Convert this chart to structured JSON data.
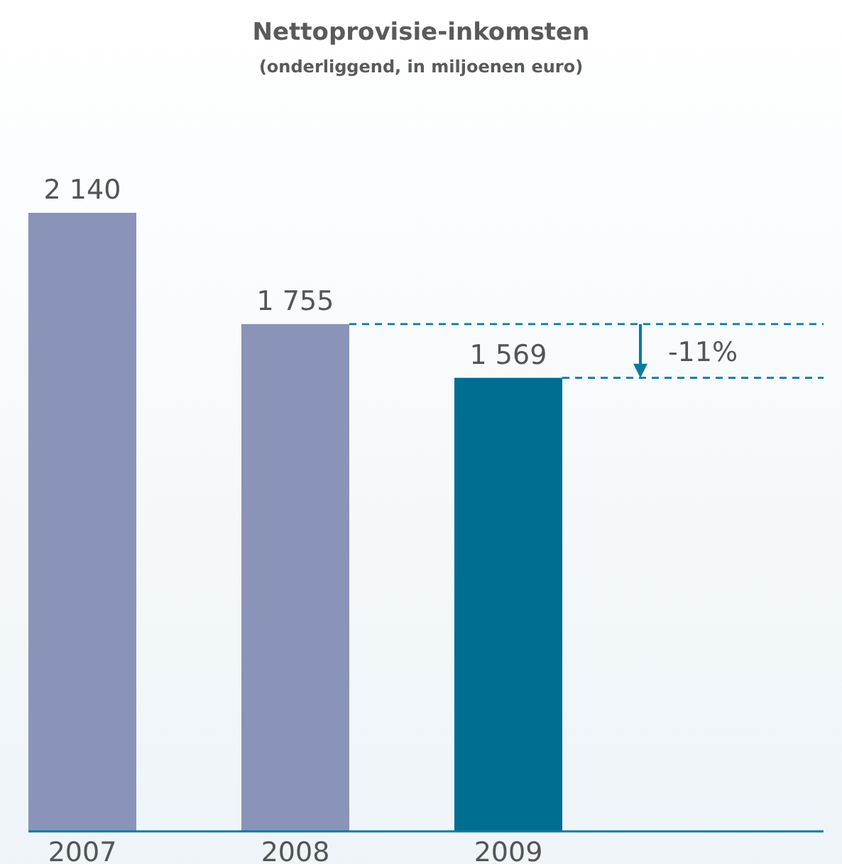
{
  "chart_data": {
    "type": "bar",
    "title": "Nettoprovisie-inkomsten",
    "subtitle": "(onderliggend, in miljoenen euro)",
    "categories": [
      "2007",
      "2008",
      "2009"
    ],
    "values": [
      2140,
      1755,
      1569
    ],
    "colors": [
      "#8994b8",
      "#8994b8",
      "#006e91"
    ],
    "value_labels": [
      "2 140",
      "1 755",
      "1 569"
    ],
    "ylim": [
      0,
      2140
    ],
    "ref_lines": [
      {
        "axis": "y",
        "value": 1755,
        "color": "#0a7aa0",
        "line_style": "dashed"
      },
      {
        "axis": "y",
        "value": 1569,
        "color": "#0a7aa0",
        "line_style": "dashed"
      }
    ],
    "annotations": [
      "-11%"
    ]
  }
}
